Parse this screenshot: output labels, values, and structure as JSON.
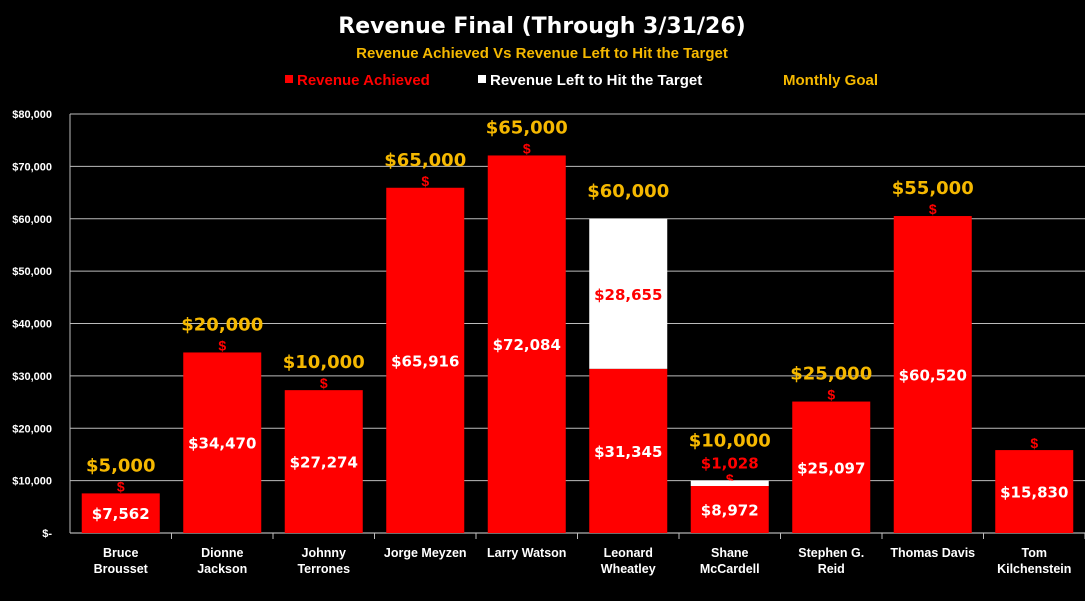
{
  "chart_data": {
    "type": "bar",
    "title": "Revenue Final (Through 3/31/26)",
    "subtitle": "Revenue Achieved Vs Revenue Left to Hit the Target",
    "legend": [
      "Revenue Achieved",
      "Revenue Left to Hit the Target",
      "Monthly Goal"
    ],
    "legend_position": "top",
    "categories": [
      [
        "Bruce",
        "Brousset"
      ],
      [
        "Dionne",
        "Jackson"
      ],
      [
        "Johnny",
        "Terrones"
      ],
      [
        "Jorge Meyzen"
      ],
      [
        "Larry Watson"
      ],
      [
        "Leonard",
        "Wheatley"
      ],
      [
        "Shane",
        "McCardell"
      ],
      [
        "Stephen G.",
        "Reid"
      ],
      [
        "Thomas Davis"
      ],
      [
        "Tom",
        "Kilchenstein"
      ]
    ],
    "series": [
      {
        "name": "Revenue Achieved",
        "values": [
          7562,
          34470,
          27274,
          65916,
          72084,
          31345,
          8972,
          25097,
          60520,
          15830
        ],
        "labels": [
          "$7,562",
          "$34,470",
          "$27,274",
          "$65,916",
          "$72,084",
          "$31,345",
          "$8,972",
          "$25,097",
          "$60,520",
          "$15,830"
        ]
      },
      {
        "name": "Revenue Left to Hit the Target",
        "values": [
          0,
          0,
          0,
          0,
          0,
          28655,
          1028,
          0,
          0,
          0
        ],
        "labels": [
          "",
          "",
          "",
          "",
          "",
          "$28,655",
          "$1,028",
          "",
          "",
          ""
        ]
      },
      {
        "name": "Monthly Goal",
        "values": [
          5000,
          20000,
          10000,
          65000,
          65000,
          60000,
          10000,
          25000,
          55000,
          null
        ],
        "labels": [
          "$5,000",
          "$20,000",
          "$10,000",
          "$65,000",
          "$65,000",
          "$60,000",
          "$10,000",
          "$25,000",
          "$55,000",
          ""
        ]
      }
    ],
    "ylim": [
      0,
      80000
    ],
    "yticks": [
      0,
      10000,
      20000,
      30000,
      40000,
      50000,
      60000,
      70000,
      80000
    ],
    "ytick_labels": [
      "$-",
      "$10,000",
      "$20,000",
      "$30,000",
      "$40,000",
      "$50,000",
      "$60,000",
      "$70,000",
      "$80,000"
    ],
    "grid": true,
    "colors": {
      "achieved": "#ff0000",
      "left": "#ffffff",
      "goal": "#f5b800"
    }
  }
}
